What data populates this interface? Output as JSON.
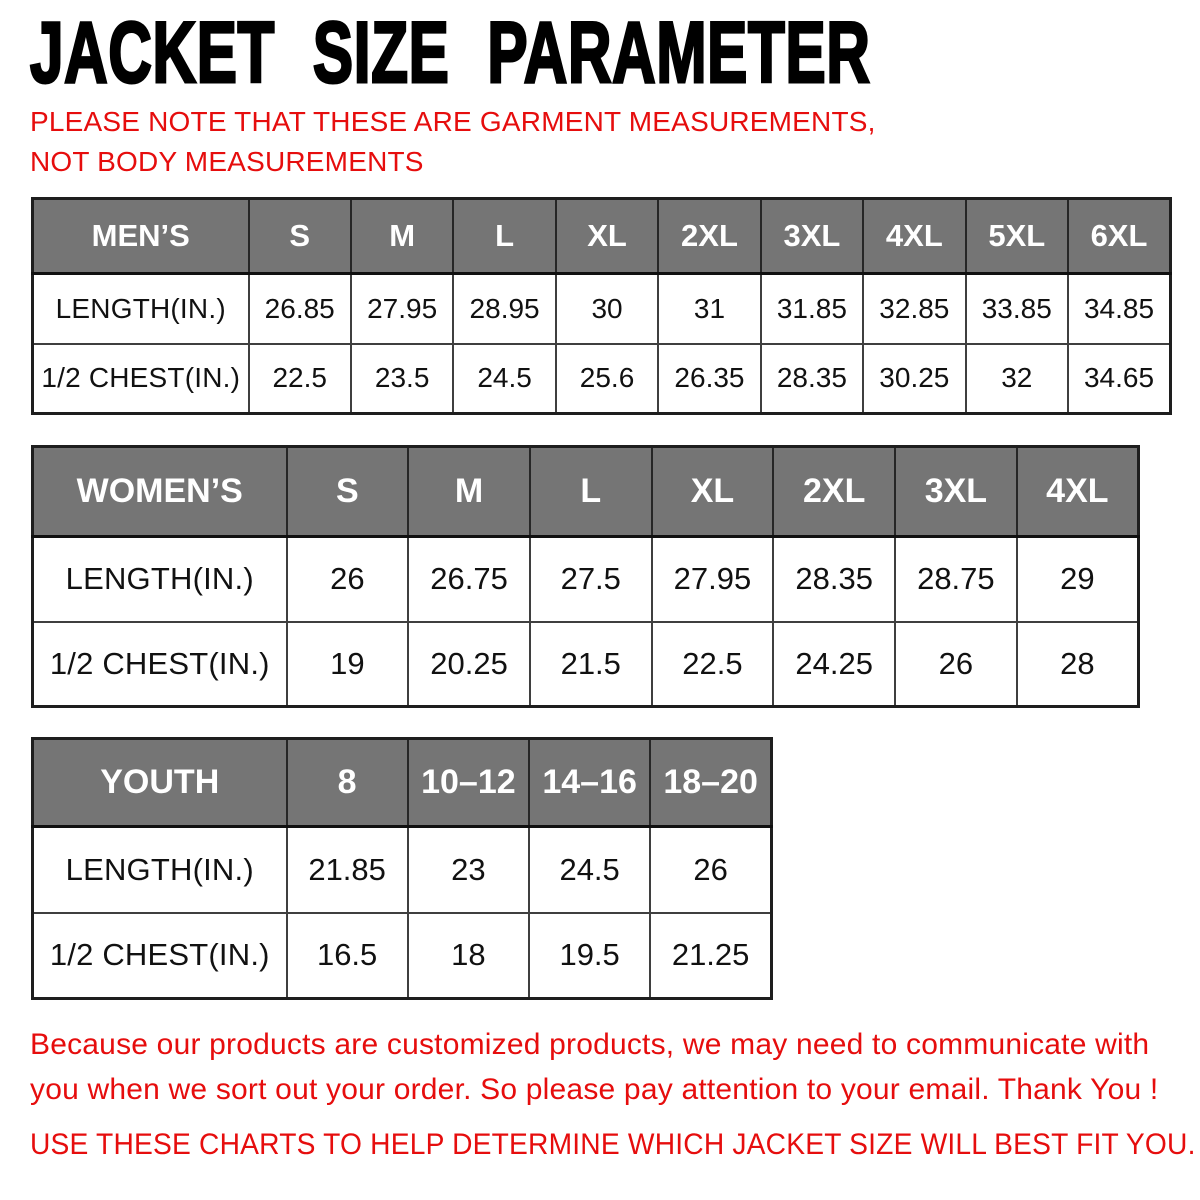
{
  "title": "JACKET SIZE PARAMETER",
  "note": "PLEASE NOTE THAT THESE ARE GARMENT MEASUREMENTS, NOT BODY MEASUREMENTS",
  "colors": {
    "accent_red": "#e60d0d",
    "header_gray": "#757575",
    "header_text": "#ffffff",
    "cell_text": "#111111",
    "outer_border": "#1e1e1e",
    "inner_border": "#3f3f3f"
  },
  "tables": [
    {
      "id": "mens",
      "header": [
        "MEN’S",
        "S",
        "M",
        "L",
        "XL",
        "2XL",
        "3XL",
        "4XL",
        "5XL",
        "6XL"
      ],
      "rows": [
        {
          "label": "LENGTH(IN.)",
          "values": [
            "26.85",
            "27.95",
            "28.95",
            "30",
            "31",
            "31.85",
            "32.85",
            "33.85",
            "34.85"
          ]
        },
        {
          "label": "1/2 CHEST(IN.)",
          "values": [
            "22.5",
            "23.5",
            "24.5",
            "25.6",
            "26.35",
            "28.35",
            "30.25",
            "32",
            "34.65"
          ]
        }
      ]
    },
    {
      "id": "womens",
      "header": [
        "WOMEN’S",
        "S",
        "M",
        "L",
        "XL",
        "2XL",
        "3XL",
        "4XL"
      ],
      "rows": [
        {
          "label": "LENGTH(IN.)",
          "values": [
            "26",
            "26.75",
            "27.5",
            "27.95",
            "28.35",
            "28.75",
            "29"
          ]
        },
        {
          "label": "1/2 CHEST(IN.)",
          "values": [
            "19",
            "20.25",
            "21.5",
            "22.5",
            "24.25",
            "26",
            "28"
          ]
        }
      ]
    },
    {
      "id": "youth",
      "header": [
        "YOUTH",
        "8",
        "10–12",
        "14–16",
        "18–20"
      ],
      "rows": [
        {
          "label": "LENGTH(IN.)",
          "values": [
            "21.85",
            "23",
            "24.5",
            "26"
          ]
        },
        {
          "label": "1/2 CHEST(IN.)",
          "values": [
            "16.5",
            "18",
            "19.5",
            "21.25"
          ]
        }
      ]
    }
  ],
  "footer": {
    "line1": "Because our products are customized products, we may need to communicate with you when we sort out your order. So please pay attention to your email. Thank You !",
    "line2": "USE THESE CHARTS TO HELP DETERMINE WHICH JACKET SIZE WILL BEST FIT YOU."
  }
}
